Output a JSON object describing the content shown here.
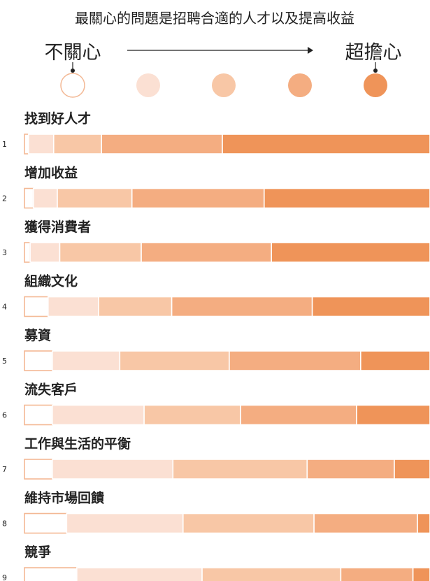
{
  "chart_data": {
    "type": "bar",
    "stacked": true,
    "normalized": true,
    "title": "最關心的問題是招聘合適的人才以及提高收益",
    "scale": {
      "low_label": "不關心",
      "high_label": "超擔心",
      "levels": [
        1,
        2,
        3,
        4,
        5
      ]
    },
    "colors": [
      "#ffffff",
      "#fbe0d3",
      "#f8c7a6",
      "#f4ad81",
      "#ef9459"
    ],
    "categories": [
      "找到好人才",
      "增加收益",
      "獲得消費者",
      "組織文化",
      "募資",
      "流失客戶",
      "工作與生活的平衡",
      "維持市場回饋",
      "競爭"
    ],
    "ranks": [
      "1",
      "2",
      "3",
      "4",
      "5",
      "6",
      "7",
      "8",
      "9"
    ],
    "series": [
      {
        "level": 1,
        "values": [
          1.0,
          2.2,
          1.4,
          6.0,
          6.9,
          6.9,
          6.9,
          10.4,
          12.9
        ]
      },
      {
        "level": 2,
        "values": [
          6.2,
          5.9,
          7.3,
          12.8,
          16.6,
          22.6,
          29.7,
          28.7,
          30.9
        ]
      },
      {
        "level": 3,
        "values": [
          11.8,
          18.4,
          20.1,
          18.6,
          27.0,
          23.8,
          33.1,
          32.3,
          34.2
        ]
      },
      {
        "level": 4,
        "values": [
          29.8,
          32.6,
          32.1,
          35.7,
          32.4,
          28.6,
          21.5,
          25.5,
          17.8
        ]
      },
      {
        "level": 5,
        "values": [
          51.2,
          40.9,
          39.1,
          29.9,
          17.1,
          18.1,
          8.8,
          3.1,
          4.2
        ]
      }
    ]
  }
}
